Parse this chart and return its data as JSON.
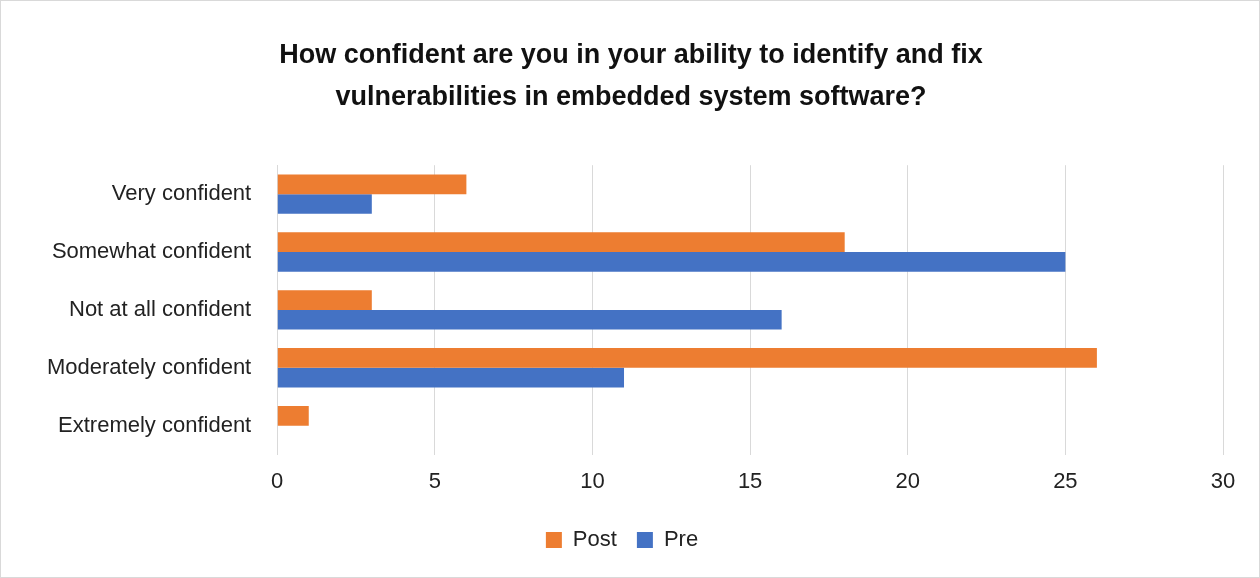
{
  "chart_data": {
    "type": "bar",
    "orientation": "horizontal",
    "title": "How confident are you in your ability to identify and fix vulnerabilities in embedded system software?",
    "categories": [
      "Very confident",
      "Somewhat confident",
      "Not at all confident",
      "Moderately confident",
      "Extremely confident"
    ],
    "series": [
      {
        "name": "Post",
        "color": "#ed7d31",
        "values": [
          6,
          18,
          3,
          26,
          1
        ]
      },
      {
        "name": "Pre",
        "color": "#4472c4",
        "values": [
          3,
          25,
          16,
          11,
          0
        ]
      }
    ],
    "xlim": [
      0,
      30
    ],
    "xticks": [
      0,
      5,
      10,
      15,
      20,
      25,
      30
    ],
    "grid": "x",
    "legend": "bottom"
  }
}
